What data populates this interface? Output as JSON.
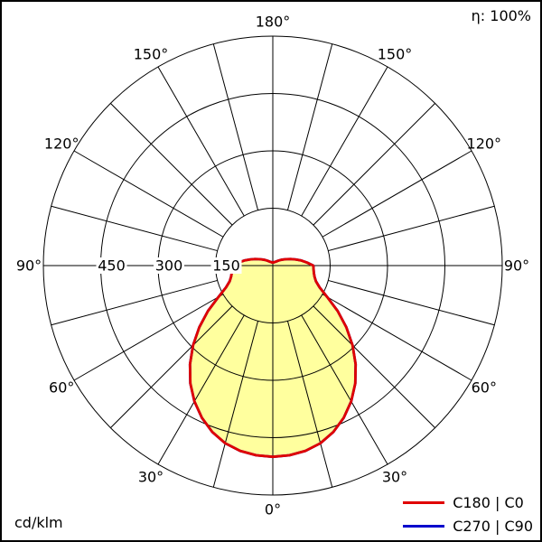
{
  "header": {
    "efficiency_label": "η: 100%"
  },
  "footer": {
    "unit_label": "cd/klm"
  },
  "legend": {
    "items": [
      {
        "label": "C180 | C0",
        "color": "#e00000"
      },
      {
        "label": "C270 | C90",
        "color": "#0000cc"
      }
    ]
  },
  "chart_data": {
    "type": "polar",
    "unit": "cd/klm",
    "efficiency": "η: 100%",
    "r_max": 600,
    "radial_ticks": [
      150,
      300,
      450
    ],
    "ring_values": [
      150,
      300,
      450,
      600
    ],
    "angle_grid_step_deg": 15,
    "angle_label_step_deg": 30,
    "angle_labels": [
      "0°",
      "30°",
      "60°",
      "90°",
      "120°",
      "150°",
      "180°"
    ],
    "grid_color": "#000000",
    "text_color": "#000000",
    "fill_color": "#ffff9e",
    "series": [
      {
        "name": "C270 | C90",
        "color": "#0000cc",
        "angles_deg": [
          0,
          5,
          10,
          15,
          20,
          25,
          30,
          35,
          40,
          45,
          50,
          55,
          60,
          65,
          70,
          75,
          80,
          85,
          90,
          95,
          100,
          105,
          110,
          115,
          120,
          125,
          130,
          135,
          140,
          145,
          150,
          155,
          160,
          165,
          170,
          175,
          180
        ],
        "values": [
          500,
          498,
          492,
          481,
          463,
          439,
          410,
          376,
          337,
          295,
          251,
          207,
          164,
          135,
          120,
          113,
          109,
          107,
          106,
          90,
          76,
          62,
          50,
          40,
          32,
          26,
          21,
          17,
          14,
          12,
          11,
          10,
          9,
          9,
          8,
          8,
          8
        ]
      },
      {
        "name": "C180 | C0",
        "color": "#e00000",
        "angles_deg": [
          0,
          5,
          10,
          15,
          20,
          25,
          30,
          35,
          40,
          45,
          50,
          55,
          60,
          65,
          70,
          75,
          80,
          85,
          90,
          95,
          100,
          105,
          110,
          115,
          120,
          125,
          130,
          135,
          140,
          145,
          150,
          155,
          160,
          165,
          170,
          175,
          180
        ],
        "values": [
          500,
          498,
          492,
          481,
          463,
          439,
          410,
          376,
          337,
          295,
          251,
          207,
          164,
          135,
          120,
          113,
          109,
          107,
          106,
          90,
          76,
          62,
          50,
          40,
          32,
          26,
          21,
          17,
          14,
          12,
          11,
          10,
          9,
          9,
          8,
          8,
          8
        ]
      }
    ]
  }
}
